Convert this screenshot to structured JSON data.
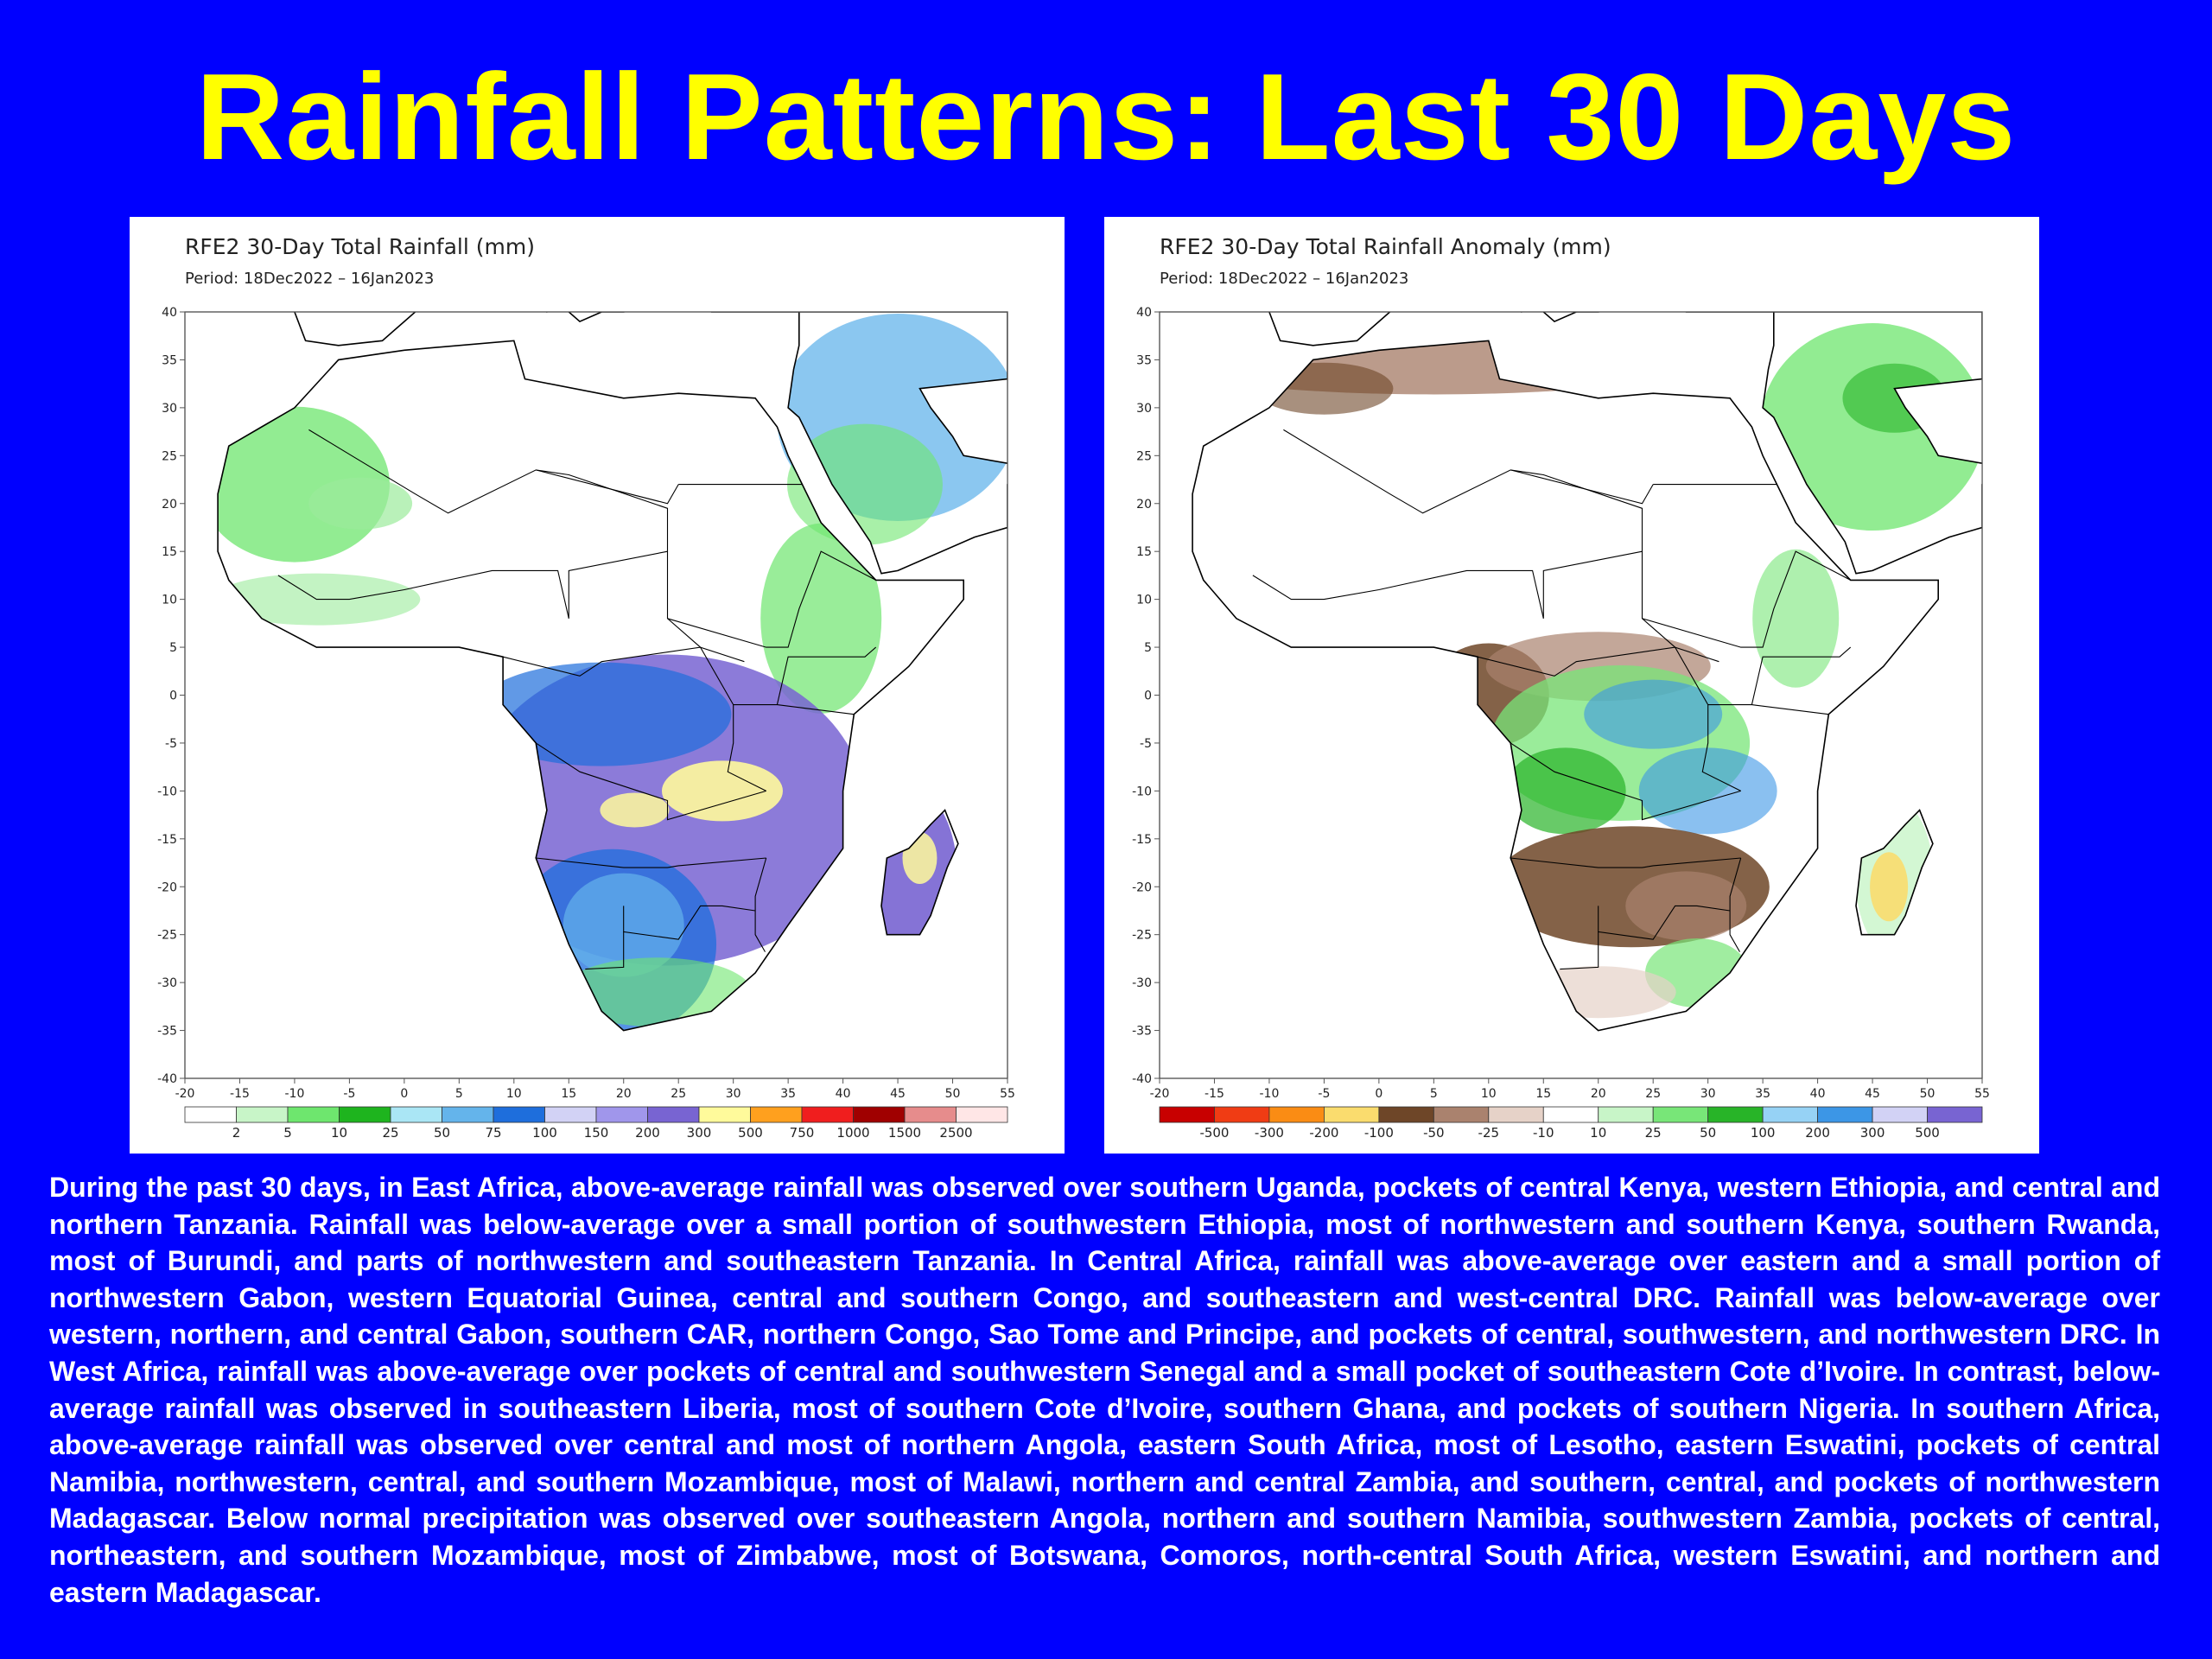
{
  "slide": {
    "title": "Rainfall Patterns: Last 30 Days",
    "description": "During the past 30 days, in East Africa, above-average rainfall was observed over southern Uganda, pockets of central Kenya, western Ethiopia, and central and northern Tanzania. Rainfall was below-average over a small portion of southwestern Ethiopia, most of northwestern and southern Kenya, southern Rwanda, most of Burundi, and parts of northwestern and southeastern Tanzania. In Central Africa, rainfall was above-average over eastern and a small portion of northwestern Gabon, western Equatorial Guinea, central and southern Congo, and southeastern and west-central DRC. Rainfall was below-average over western, northern, and central Gabon, southern CAR, northern Congo, Sao Tome and Principe, and pockets of central, southwestern, and northwestern DRC. In West Africa, rainfall was above-average over pockets of central and southwestern Senegal and a small pocket of southeastern Cote d’Ivoire. In contrast, below-average rainfall was observed in southeastern Liberia, most of southern Cote d’Ivoire, southern Ghana, and pockets of southern Nigeria. In southern Africa, above-average rainfall was observed over central and most of northern Angola, eastern South Africa, most of Lesotho, eastern Eswatini, pockets of central Namibia, northwestern, central, and southern Mozambique, most of Malawi, northern and central Zambia, and southern, central, and pockets of northwestern Madagascar. Below normal precipitation was observed over southeastern Angola, northern and southern Namibia, southwestern Zambia, pockets of central, northeastern, and southern Mozambique, most of Zimbabwe, most of Botswana, Comoros, north-central South Africa, western Eswatini, and northern and eastern Madagascar."
  },
  "axes": {
    "lat_ticks": [
      "40",
      "35",
      "30",
      "25",
      "20",
      "15",
      "10",
      "5",
      "0",
      "-5",
      "-10",
      "-15",
      "-20",
      "-25",
      "-30",
      "-35",
      "-40"
    ],
    "lon_ticks": [
      "-20",
      "-15",
      "-10",
      "-5",
      "0",
      "5",
      "10",
      "15",
      "20",
      "25",
      "30",
      "35",
      "40",
      "45",
      "50",
      "55"
    ]
  },
  "maps": {
    "total": {
      "title": "RFE2 30-Day Total Rainfall (mm)",
      "period": "Period: 18Dec2022 – 16Jan2023",
      "legend_labels": [
        "2",
        "5",
        "10",
        "25",
        "50",
        "75",
        "100",
        "150",
        "200",
        "300",
        "500",
        "750",
        "1000",
        "1500",
        "2500"
      ],
      "legend_colors": [
        "#FFFFFF",
        "#C8F5C8",
        "#6EE66E",
        "#1EB41E",
        "#AAE6F5",
        "#64B4EB",
        "#1E6EDC",
        "#D2D2F5",
        "#A096EB",
        "#7864D2",
        "#FFFA9B",
        "#FFA01E",
        "#F01E1E",
        "#A00000",
        "#E68C8C",
        "#FFE6E6"
      ]
    },
    "anomaly": {
      "title": "RFE2 30-Day Total Rainfall Anomaly (mm)",
      "period": "Period: 18Dec2022 – 16Jan2023",
      "legend_labels": [
        "-500",
        "-300",
        "-200",
        "-100",
        "-50",
        "-25",
        "-10",
        "10",
        "25",
        "50",
        "100",
        "200",
        "300",
        "500"
      ],
      "legend_colors": [
        "#C80000",
        "#F03C14",
        "#FA8C14",
        "#FADC6E",
        "#6E4628",
        "#AA826E",
        "#E6D2C8",
        "#FFFFFF",
        "#C8F5C8",
        "#78E678",
        "#28B428",
        "#96D2F5",
        "#3C96E6",
        "#D2D2F5",
        "#7864D2"
      ]
    }
  }
}
